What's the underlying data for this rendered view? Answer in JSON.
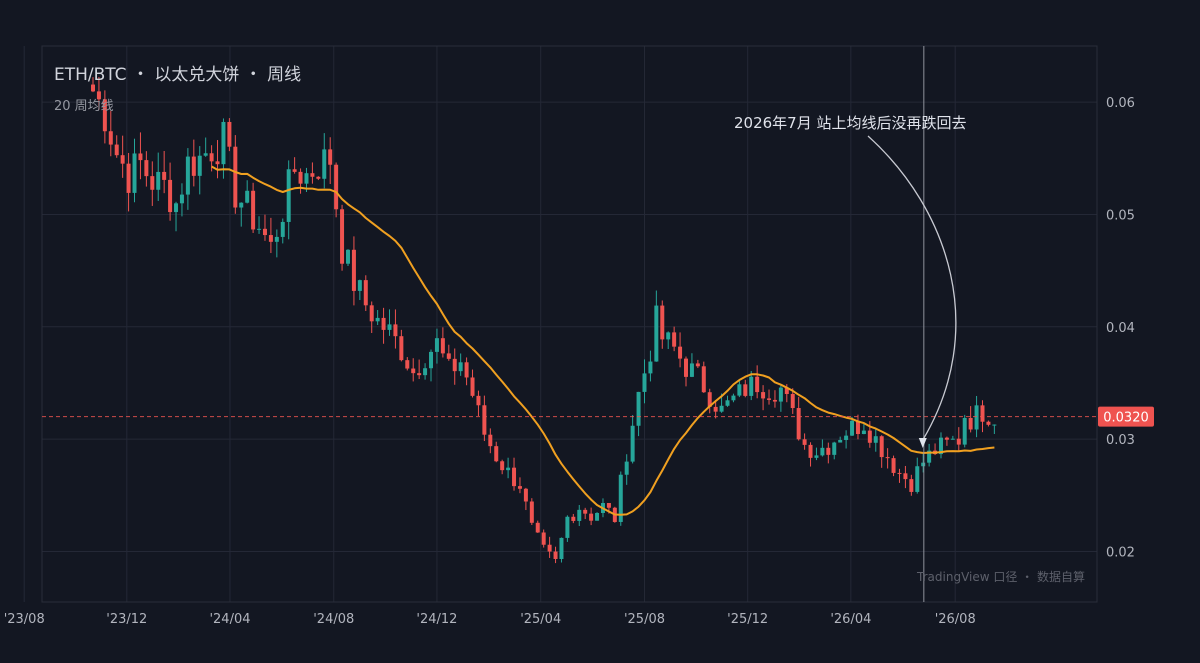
{
  "chart_data": {
    "type": "candlestick",
    "title": "ETH/BTC ・ 以太兑大饼 ・ 周线",
    "subtitle": "20 周均线",
    "ylim": [
      0.0155,
      0.065
    ],
    "yticks": [
      {
        "value": 0.02,
        "label": "0.02"
      },
      {
        "value": 0.03,
        "label": "0.03"
      },
      {
        "value": 0.04,
        "label": "0.04"
      },
      {
        "value": 0.05,
        "label": "0.05"
      },
      {
        "value": 0.06,
        "label": "0.06"
      }
    ],
    "xticks": [
      {
        "label": "'23/08",
        "week": -11.6
      },
      {
        "label": "'23/12",
        "week": 5.7
      },
      {
        "label": "'24/04",
        "week": 23.1
      },
      {
        "label": "'24/08",
        "week": 40.6
      },
      {
        "label": "'24/12",
        "week": 58.0
      },
      {
        "label": "'25/04",
        "week": 75.5
      },
      {
        "label": "'25/08",
        "week": 93.0
      },
      {
        "label": "'25/12",
        "week": 110.4
      },
      {
        "label": "'26/04",
        "week": 127.8
      },
      {
        "label": "'26/08",
        "week": 145.4
      }
    ],
    "last_price": {
      "value": 0.032,
      "label": "0.0320"
    },
    "annotation": {
      "text": "2026年7月  站上均线后没再跌回去",
      "week": 140.1
    },
    "watermark": "TradingView 口径 ・ 数据自算",
    "moving_average": {
      "name": "20 周均线",
      "period": 20,
      "color": "#f0a020"
    },
    "colors": {
      "up": "#26a69a",
      "down": "#ef5350",
      "grid": "#242836",
      "background": "#131722"
    },
    "anchors": [
      [
        0,
        0.061
      ],
      [
        2,
        0.059
      ],
      [
        4,
        0.0555
      ],
      [
        6,
        0.0535
      ],
      [
        8,
        0.0545
      ],
      [
        10,
        0.053
      ],
      [
        12,
        0.0525
      ],
      [
        14,
        0.051
      ],
      [
        16,
        0.0545
      ],
      [
        18,
        0.055
      ],
      [
        20,
        0.056
      ],
      [
        22,
        0.0565
      ],
      [
        24,
        0.052
      ],
      [
        26,
        0.0505
      ],
      [
        28,
        0.049
      ],
      [
        30,
        0.047
      ],
      [
        32,
        0.0505
      ],
      [
        34,
        0.054
      ],
      [
        36,
        0.0535
      ],
      [
        38,
        0.0545
      ],
      [
        40,
        0.055
      ],
      [
        42,
        0.047
      ],
      [
        44,
        0.044
      ],
      [
        46,
        0.042
      ],
      [
        48,
        0.0405
      ],
      [
        50,
        0.0395
      ],
      [
        52,
        0.038
      ],
      [
        54,
        0.036
      ],
      [
        56,
        0.0375
      ],
      [
        58,
        0.0385
      ],
      [
        60,
        0.036
      ],
      [
        62,
        0.037
      ],
      [
        64,
        0.034
      ],
      [
        66,
        0.0305
      ],
      [
        68,
        0.0285
      ],
      [
        70,
        0.027
      ],
      [
        72,
        0.026
      ],
      [
        74,
        0.022
      ],
      [
        76,
        0.02
      ],
      [
        78,
        0.019
      ],
      [
        80,
        0.023
      ],
      [
        82,
        0.024
      ],
      [
        84,
        0.0232
      ],
      [
        86,
        0.024
      ],
      [
        88,
        0.023
      ],
      [
        90,
        0.029
      ],
      [
        92,
        0.034
      ],
      [
        94,
        0.038
      ],
      [
        95,
        0.0405
      ],
      [
        96,
        0.039
      ],
      [
        98,
        0.038
      ],
      [
        100,
        0.0365
      ],
      [
        102,
        0.0355
      ],
      [
        104,
        0.034
      ],
      [
        106,
        0.0325
      ],
      [
        108,
        0.0335
      ],
      [
        110,
        0.0345
      ],
      [
        112,
        0.035
      ],
      [
        114,
        0.0345
      ],
      [
        116,
        0.0345
      ],
      [
        118,
        0.032
      ],
      [
        120,
        0.0295
      ],
      [
        122,
        0.029
      ],
      [
        124,
        0.0295
      ],
      [
        126,
        0.0305
      ],
      [
        128,
        0.031
      ],
      [
        130,
        0.0315
      ],
      [
        132,
        0.03
      ],
      [
        134,
        0.0285
      ],
      [
        136,
        0.027
      ],
      [
        138,
        0.0262
      ],
      [
        140,
        0.028
      ],
      [
        142,
        0.029
      ],
      [
        144,
        0.0295
      ],
      [
        146,
        0.03
      ],
      [
        147,
        0.0322
      ],
      [
        148,
        0.0318
      ],
      [
        150,
        0.0325
      ],
      [
        152,
        0.032
      ]
    ]
  }
}
